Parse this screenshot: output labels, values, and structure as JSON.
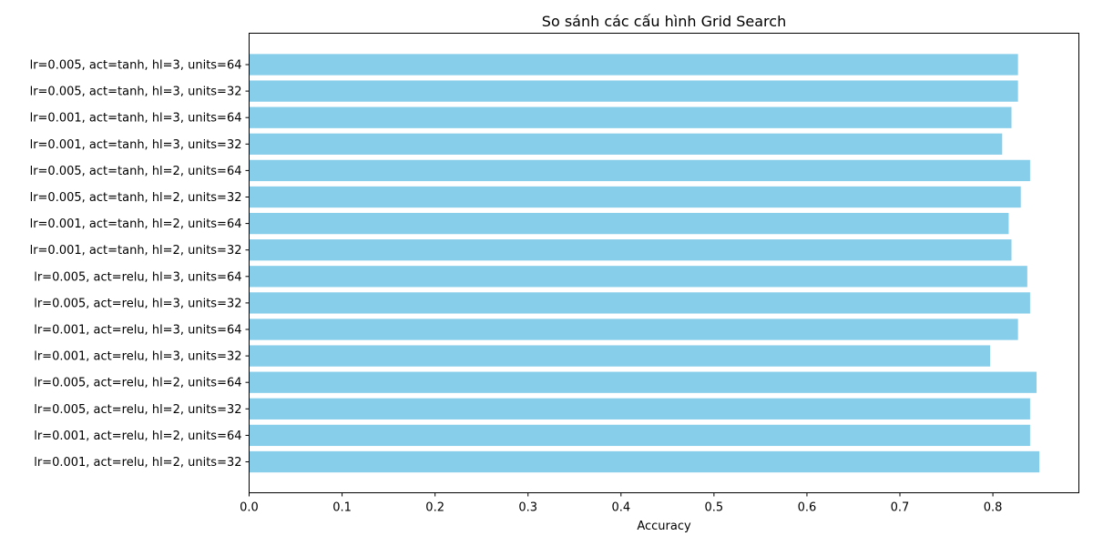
{
  "chart_data": {
    "type": "bar",
    "orientation": "horizontal",
    "title": "So sánh các cấu hình Grid Search",
    "xlabel": "Accuracy",
    "ylabel": "",
    "xlim": [
      0,
      0.8925
    ],
    "xticks": [
      "0.0",
      "0.1",
      "0.2",
      "0.3",
      "0.4",
      "0.5",
      "0.6",
      "0.7",
      "0.8"
    ],
    "xtick_values": [
      0,
      0.1,
      0.2,
      0.3,
      0.4,
      0.5,
      0.6,
      0.7,
      0.8
    ],
    "bar_color": "#87CEEB",
    "grid": false,
    "categories": [
      "lr=0.001, act=relu, hl=2, units=32",
      "lr=0.001, act=relu, hl=2, units=64",
      "lr=0.005, act=relu, hl=2, units=32",
      "lr=0.005, act=relu, hl=2, units=64",
      "lr=0.001, act=relu, hl=3, units=32",
      "lr=0.001, act=relu, hl=3, units=64",
      "lr=0.005, act=relu, hl=3, units=32",
      "lr=0.005, act=relu, hl=3, units=64",
      "lr=0.001, act=tanh, hl=2, units=32",
      "lr=0.001, act=tanh, hl=2, units=64",
      "lr=0.005, act=tanh, hl=2, units=32",
      "lr=0.005, act=tanh, hl=2, units=64",
      "lr=0.001, act=tanh, hl=3, units=32",
      "lr=0.001, act=tanh, hl=3, units=64",
      "lr=0.005, act=tanh, hl=3, units=32",
      "lr=0.005, act=tanh, hl=3, units=64"
    ],
    "values": [
      0.85,
      0.84,
      0.84,
      0.847,
      0.797,
      0.827,
      0.84,
      0.837,
      0.82,
      0.817,
      0.83,
      0.84,
      0.81,
      0.82,
      0.827,
      0.827
    ]
  }
}
